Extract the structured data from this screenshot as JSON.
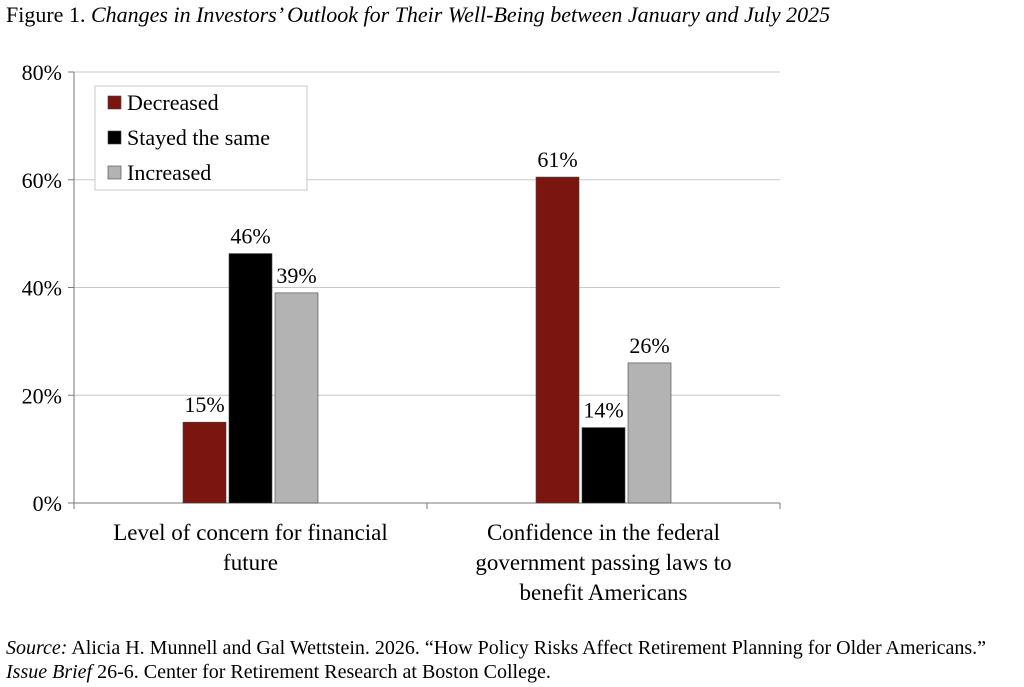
{
  "figure": {
    "label": "Figure 1.",
    "title": "Changes in Investors’ Outlook for Their Well-Being between January and July 2025"
  },
  "chart_data": {
    "type": "bar",
    "categories": [
      [
        "Level of concern for financial",
        "future"
      ],
      [
        "Confidence in the federal",
        "government passing laws to",
        "benefit Americans"
      ]
    ],
    "series": [
      {
        "name": "Decreased",
        "color": "#7B1510",
        "values": [
          15,
          61
        ],
        "labels": [
          "15%",
          "61%"
        ],
        "plotted": [
          15,
          60.5
        ]
      },
      {
        "name": "Stayed the same",
        "color": "#000000",
        "values": [
          46,
          14
        ],
        "labels": [
          "46%",
          "14%"
        ],
        "plotted": [
          46.3,
          14
        ]
      },
      {
        "name": "Increased",
        "color": "#B3B3B3",
        "values": [
          39,
          26
        ],
        "labels": [
          "39%",
          "26%"
        ],
        "plotted": [
          39,
          26
        ]
      }
    ],
    "ylim": [
      0,
      80
    ],
    "yticks": [
      0,
      20,
      40,
      60,
      80
    ],
    "ytick_labels": [
      "0%",
      "20%",
      "40%",
      "60%",
      "80%"
    ],
    "grid": true,
    "legend": "top-left"
  },
  "source": {
    "label": "Source:",
    "text_1": " Alicia H. Munnell and Gal Wettstein. 2026. “How Policy Risks Affect Retirement Planning for Older Americans.” ",
    "publication": "Issue Brief",
    "text_2": " 26-6. Center for Retirement Research at Boston College."
  }
}
